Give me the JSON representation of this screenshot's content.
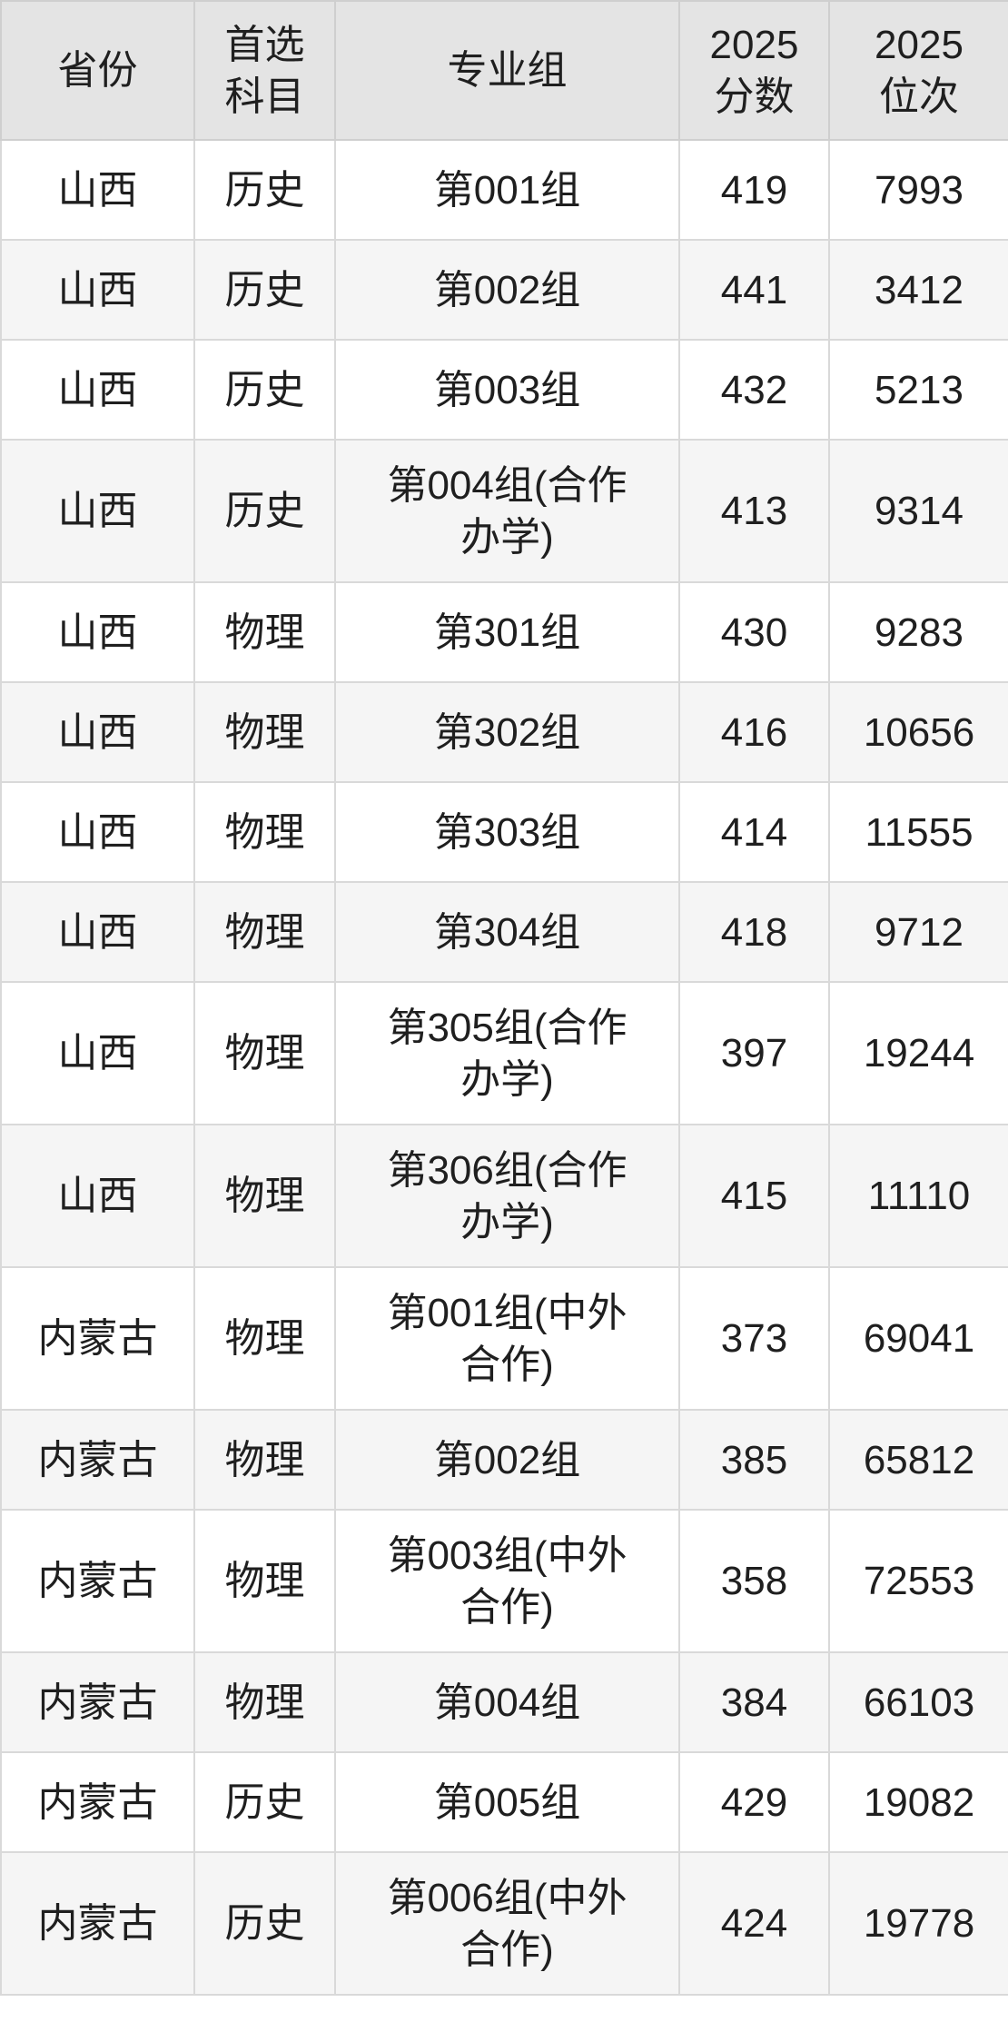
{
  "chart_data": {
    "type": "table",
    "columns": [
      {
        "id": "province",
        "label": "省份"
      },
      {
        "id": "subject",
        "label": "首选\n科目"
      },
      {
        "id": "group",
        "label": "专业组"
      },
      {
        "id": "score",
        "label": "2025\n分数"
      },
      {
        "id": "rank",
        "label": "2025\n位次"
      }
    ],
    "rows": [
      {
        "province": "山西",
        "subject": "历史",
        "group": "第001组",
        "score": 419,
        "rank": 7993
      },
      {
        "province": "山西",
        "subject": "历史",
        "group": "第002组",
        "score": 441,
        "rank": 3412
      },
      {
        "province": "山西",
        "subject": "历史",
        "group": "第003组",
        "score": 432,
        "rank": 5213
      },
      {
        "province": "山西",
        "subject": "历史",
        "group": "第004组(合作\n办学)",
        "score": 413,
        "rank": 9314
      },
      {
        "province": "山西",
        "subject": "物理",
        "group": "第301组",
        "score": 430,
        "rank": 9283
      },
      {
        "province": "山西",
        "subject": "物理",
        "group": "第302组",
        "score": 416,
        "rank": 10656
      },
      {
        "province": "山西",
        "subject": "物理",
        "group": "第303组",
        "score": 414,
        "rank": 11555
      },
      {
        "province": "山西",
        "subject": "物理",
        "group": "第304组",
        "score": 418,
        "rank": 9712
      },
      {
        "province": "山西",
        "subject": "物理",
        "group": "第305组(合作\n办学)",
        "score": 397,
        "rank": 19244
      },
      {
        "province": "山西",
        "subject": "物理",
        "group": "第306组(合作\n办学)",
        "score": 415,
        "rank": 11110
      },
      {
        "province": "内蒙古",
        "subject": "物理",
        "group": "第001组(中外\n合作)",
        "score": 373,
        "rank": 69041
      },
      {
        "province": "内蒙古",
        "subject": "物理",
        "group": "第002组",
        "score": 385,
        "rank": 65812
      },
      {
        "province": "内蒙古",
        "subject": "物理",
        "group": "第003组(中外\n合作)",
        "score": 358,
        "rank": 72553
      },
      {
        "province": "内蒙古",
        "subject": "物理",
        "group": "第004组",
        "score": 384,
        "rank": 66103
      },
      {
        "province": "内蒙古",
        "subject": "历史",
        "group": "第005组",
        "score": 429,
        "rank": 19082
      },
      {
        "province": "内蒙古",
        "subject": "历史",
        "group": "第006组(中外\n合作)",
        "score": 424,
        "rank": 19778
      }
    ]
  },
  "colors": {
    "header_bg": "#e4e4e4",
    "row_bg": "#ffffff",
    "row_alt_bg": "#f5f5f5",
    "grid_line": "#d9d9d9",
    "text": "#1f1f1f"
  }
}
